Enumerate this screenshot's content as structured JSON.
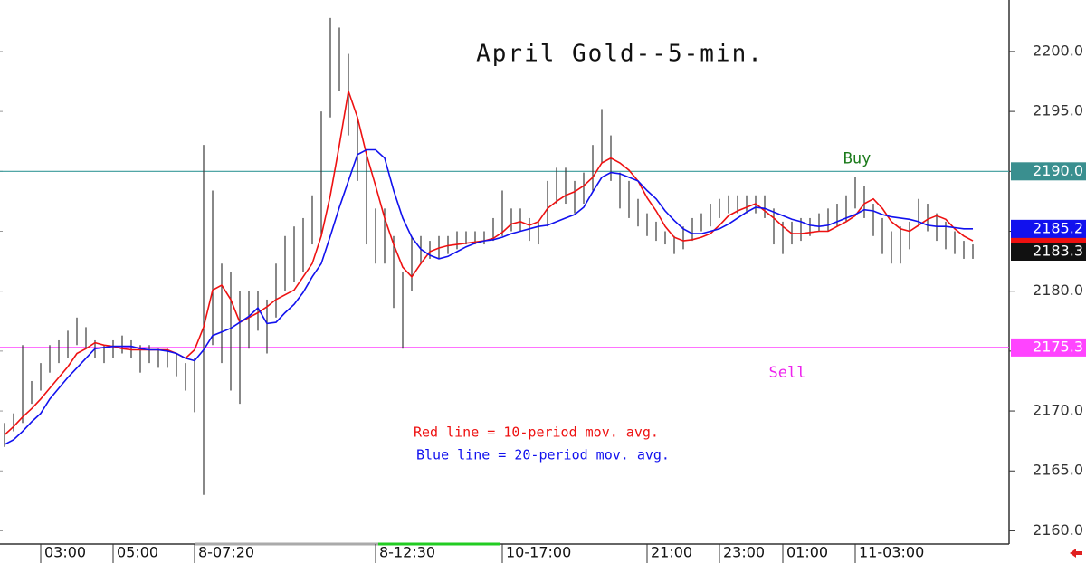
{
  "chart_data": {
    "type": "ohlc",
    "title": "April Gold--5-min.",
    "categories": [
      null,
      null,
      null,
      null,
      "03:00",
      null,
      null,
      null,
      null,
      null,
      null,
      null,
      "05:00",
      null,
      null,
      null,
      null,
      null,
      null,
      null,
      null,
      "8-07:20",
      null,
      null,
      null,
      null,
      null,
      null,
      null,
      null,
      null,
      null,
      null,
      null,
      null,
      null,
      null,
      null,
      null,
      null,
      null,
      "8-12:30",
      null,
      null,
      null,
      null,
      null,
      null,
      null,
      null,
      null,
      null,
      null,
      null,
      null,
      "10-17:00",
      null,
      null,
      null,
      null,
      null,
      null,
      null,
      null,
      null,
      null,
      null,
      null,
      null,
      null,
      null,
      "21:00",
      null,
      null,
      null,
      null,
      null,
      null,
      null,
      "23:00",
      null,
      null,
      null,
      null,
      null,
      null,
      "01:00",
      null,
      null,
      null,
      null,
      null,
      null,
      null,
      "11-03:00",
      null,
      null,
      null,
      null,
      null,
      null,
      null,
      null,
      null,
      null,
      null,
      null,
      null
    ],
    "high": [
      2169.0,
      2169.8,
      2175.5,
      2172.5,
      2174.0,
      2175.5,
      2175.9,
      2176.7,
      2177.8,
      2177.0,
      2175.9,
      2175.5,
      2175.9,
      2176.3,
      2175.9,
      2175.5,
      2175.5,
      2175.2,
      2175.2,
      2174.8,
      2174.0,
      2174.4,
      2192.2,
      2188.4,
      2182.3,
      2181.6,
      2180.0,
      2180.0,
      2180.0,
      2179.3,
      2182.3,
      2184.6,
      2185.4,
      2186.1,
      2188.0,
      2195.0,
      2202.8,
      2202.0,
      2199.8,
      2194.5,
      2191.4,
      2186.9,
      2186.9,
      2184.6,
      2181.6,
      2184.6,
      2184.6,
      2184.2,
      2184.6,
      2184.6,
      2185.0,
      2185.0,
      2185.0,
      2185.0,
      2186.1,
      2188.4,
      2186.9,
      2186.9,
      2186.1,
      2185.8,
      2189.2,
      2190.3,
      2190.3,
      2189.2,
      2189.9,
      2192.2,
      2195.2,
      2193.0,
      2189.9,
      2189.2,
      2187.7,
      2186.5,
      2185.8,
      2185.0,
      2184.6,
      2185.4,
      2186.1,
      2186.5,
      2187.3,
      2187.7,
      2188.0,
      2188.0,
      2188.0,
      2188.0,
      2188.0,
      2186.9,
      2185.8,
      2185.8,
      2186.1,
      2186.1,
      2186.5,
      2186.9,
      2187.3,
      2188.0,
      2189.5,
      2188.8,
      2187.3,
      2186.1,
      2185.0,
      2185.4,
      2185.8,
      2187.7,
      2187.3,
      2186.5,
      2185.8,
      2185.0,
      2184.2,
      2183.9
    ],
    "low": [
      2167.0,
      2168.3,
      2169.0,
      2170.6,
      2171.7,
      2173.2,
      2174.0,
      2174.4,
      2175.5,
      2175.2,
      2174.4,
      2174.0,
      2174.4,
      2174.8,
      2174.4,
      2173.2,
      2174.0,
      2173.6,
      2173.6,
      2172.9,
      2171.7,
      2169.9,
      2163.0,
      2175.5,
      2174.0,
      2171.7,
      2170.6,
      2175.2,
      2176.7,
      2174.8,
      2177.8,
      2180.0,
      2180.8,
      2181.6,
      2183.9,
      2184.6,
      2194.5,
      2196.7,
      2193.0,
      2189.2,
      2183.9,
      2182.3,
      2182.3,
      2178.6,
      2175.2,
      2180.0,
      2182.3,
      2182.7,
      2182.7,
      2183.1,
      2183.5,
      2183.9,
      2183.9,
      2183.9,
      2184.2,
      2184.6,
      2185.0,
      2185.0,
      2184.2,
      2183.9,
      2185.4,
      2187.3,
      2187.3,
      2186.5,
      2187.3,
      2188.4,
      2190.7,
      2189.2,
      2186.9,
      2186.1,
      2185.4,
      2184.6,
      2184.2,
      2183.9,
      2183.1,
      2183.5,
      2184.2,
      2185.0,
      2185.4,
      2186.1,
      2186.5,
      2186.5,
      2186.5,
      2186.5,
      2186.1,
      2183.9,
      2183.1,
      2183.9,
      2184.2,
      2184.6,
      2185.0,
      2185.0,
      2185.4,
      2185.8,
      2186.9,
      2186.1,
      2184.6,
      2183.1,
      2182.3,
      2182.3,
      2183.5,
      2185.4,
      2185.0,
      2184.2,
      2183.5,
      2183.1,
      2182.7,
      2182.7
    ],
    "bar_color": "#3a3a3a",
    "last_price": 2183.3,
    "lines": [
      {
        "color": "#ee1111",
        "values": [
          2168.0,
          2168.7,
          2169.5,
          2170.2,
          2171.0,
          2171.9,
          2172.8,
          2173.7,
          2174.8,
          2175.2,
          2175.7,
          2175.5,
          2175.4,
          2175.2,
          2175.1,
          2175.1,
          2175.1,
          2175.1,
          2175.1,
          2174.8,
          2174.4,
          2175.1,
          2177.0,
          2180.1,
          2180.5,
          2179.3,
          2177.4,
          2177.8,
          2178.2,
          2178.7,
          2179.3,
          2179.7,
          2180.1,
          2181.2,
          2182.3,
          2184.6,
          2188.0,
          2192.2,
          2196.7,
          2194.5,
          2191.4,
          2188.8,
          2186.1,
          2183.9,
          2182.0,
          2181.2,
          2182.3,
          2183.3,
          2183.6,
          2183.8,
          2183.9,
          2184.0,
          2184.1,
          2184.2,
          2184.4,
          2184.9,
          2185.6,
          2185.8,
          2185.5,
          2185.8,
          2186.9,
          2187.5,
          2188.0,
          2188.3,
          2188.8,
          2189.5,
          2190.7,
          2191.1,
          2190.7,
          2190.1,
          2189.2,
          2187.8,
          2186.7,
          2185.4,
          2184.5,
          2184.2,
          2184.3,
          2184.5,
          2184.8,
          2185.5,
          2186.3,
          2186.7,
          2187.0,
          2187.3,
          2186.7,
          2186.1,
          2185.4,
          2184.8,
          2184.8,
          2184.9,
          2185.0,
          2185.0,
          2185.4,
          2185.8,
          2186.3,
          2187.3,
          2187.7,
          2186.9,
          2185.8,
          2185.2,
          2185.0,
          2185.5,
          2186.0,
          2186.3,
          2186.0,
          2185.2,
          2184.6,
          2184.2
        ]
      },
      {
        "color": "#1111ee",
        "values": [
          2167.2,
          2167.6,
          2168.3,
          2169.1,
          2169.8,
          2171.0,
          2171.9,
          2172.8,
          2173.6,
          2174.4,
          2175.2,
          2175.3,
          2175.4,
          2175.4,
          2175.4,
          2175.2,
          2175.1,
          2175.1,
          2175.0,
          2174.8,
          2174.4,
          2174.2,
          2175.1,
          2176.3,
          2176.6,
          2176.9,
          2177.4,
          2177.9,
          2178.6,
          2177.3,
          2177.4,
          2178.2,
          2178.9,
          2179.9,
          2181.2,
          2182.3,
          2184.6,
          2187.0,
          2189.2,
          2191.4,
          2191.8,
          2191.8,
          2191.1,
          2188.4,
          2186.1,
          2184.5,
          2183.5,
          2183.0,
          2182.7,
          2182.9,
          2183.3,
          2183.7,
          2184.0,
          2184.2,
          2184.3,
          2184.5,
          2184.8,
          2185.0,
          2185.2,
          2185.4,
          2185.5,
          2185.8,
          2186.1,
          2186.4,
          2187.0,
          2188.3,
          2189.5,
          2189.9,
          2189.8,
          2189.5,
          2189.2,
          2188.4,
          2187.7,
          2186.7,
          2185.9,
          2185.2,
          2184.8,
          2184.8,
          2185.0,
          2185.2,
          2185.6,
          2186.1,
          2186.6,
          2187.0,
          2186.9,
          2186.6,
          2186.3,
          2186.0,
          2185.8,
          2185.5,
          2185.4,
          2185.5,
          2185.8,
          2186.1,
          2186.4,
          2186.8,
          2186.7,
          2186.4,
          2186.2,
          2186.1,
          2186.0,
          2185.8,
          2185.5,
          2185.4,
          2185.4,
          2185.3,
          2185.2,
          2185.2
        ]
      }
    ],
    "levels": [
      {
        "value": 2190.0,
        "label": "2190.0",
        "name": "Buy",
        "color": "#3a9a9a",
        "box_color": "#3a8f8f",
        "name_color": "#1a7a1a"
      },
      {
        "value": 2175.3,
        "label": "2175.3",
        "name": "Sell",
        "color": "#ff44ff",
        "box_color": "#ff44ff",
        "name_color": "#ee22ee"
      }
    ],
    "annotations": [
      {
        "text": "Red line = 10-period mov. avg.",
        "color": "#ee1111"
      },
      {
        "text": "Blue line = 20-period mov. avg.",
        "color": "#1111ee"
      }
    ],
    "ylim": [
      2158.9,
      2204.3
    ],
    "yticks": [
      {
        "value": 2160,
        "label": "2160.0"
      },
      {
        "value": 2165,
        "label": "2165.0"
      },
      {
        "value": 2170,
        "label": "2170.0"
      },
      {
        "value": 2175,
        "label": "2175.0"
      },
      {
        "value": 2180,
        "label": "2180.0"
      },
      {
        "value": 2185,
        "label": "2185.0"
      },
      {
        "value": 2190,
        "label": "2190.0"
      },
      {
        "value": 2195,
        "label": "2195.0"
      },
      {
        "value": 2200,
        "label": "2200.0"
      }
    ]
  }
}
